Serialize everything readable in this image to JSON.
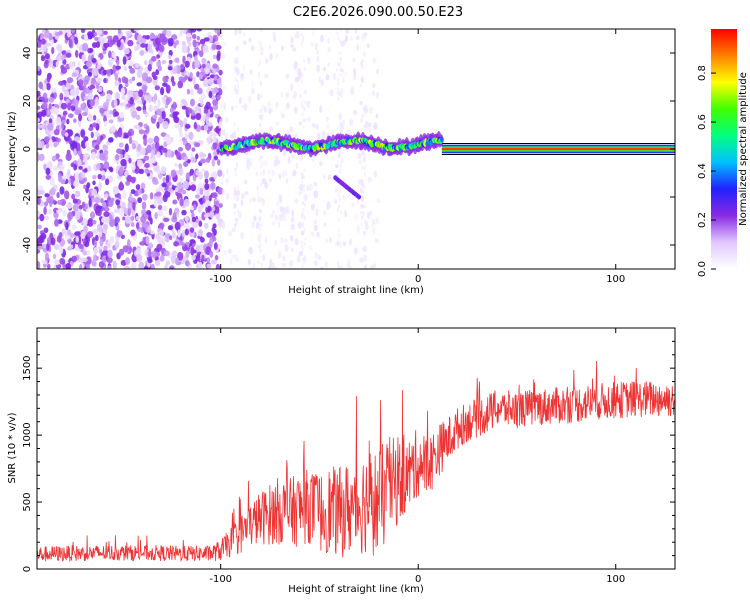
{
  "figure_title": "C2E6.2026.090.00.50.E23",
  "chart_data": [
    {
      "type": "heatmap",
      "title": "C2E6.2026.090.00.50.E23",
      "xlabel": "Height of straight line (km)",
      "ylabel": "Frequency (Hz)",
      "xlim": [
        -193,
        130
      ],
      "ylim": [
        -50,
        50
      ],
      "xticks": [
        -100,
        0,
        100
      ],
      "xtick_labels": [
        "-100",
        "0",
        "100"
      ],
      "yticks": [
        -40,
        -20,
        0,
        20,
        40
      ],
      "ytick_labels": [
        "-40",
        "-20",
        "0",
        "20",
        "40"
      ],
      "colorbar": {
        "label": "Normalized spectral amplitude",
        "range": [
          0,
          0.98
        ],
        "ticks": [
          0,
          0.2,
          0.4,
          0.6,
          0.8
        ],
        "tick_labels": [
          "0.0",
          "0.2",
          "0.4",
          "0.6",
          "0.8"
        ],
        "colormap": [
          "#ffffff",
          "#e0c8ff",
          "#8a2be2",
          "#2020ff",
          "#00c0ff",
          "#00ff80",
          "#40ff00",
          "#ffff00",
          "#ff8000",
          "#ff0000"
        ]
      },
      "features": [
        {
          "name": "noise region",
          "x_range": [
            -193,
            -100
          ],
          "amplitude": [
            0.05,
            0.25
          ]
        },
        {
          "name": "signal band",
          "x_range": [
            -100,
            12
          ],
          "frequency_center": 2,
          "amplitude": [
            0.3,
            0.8
          ]
        },
        {
          "name": "steady signal",
          "x_range": [
            12,
            130
          ],
          "frequency": 0,
          "amplitude": 0.95
        },
        {
          "name": "secondary trace",
          "x_range": [
            -42,
            -30
          ],
          "frequency_range": [
            -12,
            -20
          ]
        }
      ]
    },
    {
      "type": "line",
      "xlabel": "Height of straight line (km)",
      "ylabel": "SNR (10 * v/v)",
      "xlim": [
        -193,
        130
      ],
      "ylim": [
        0,
        1800
      ],
      "xticks": [
        -100,
        0,
        100
      ],
      "xtick_labels": [
        "-100",
        "0",
        "100"
      ],
      "yticks": [
        0,
        500,
        1000,
        1500
      ],
      "ytick_labels": [
        "0",
        "500",
        "1000",
        "1500"
      ],
      "series": [
        {
          "name": "SNR",
          "color": "#ee3333",
          "x": [
            -193,
            -180,
            -160,
            -140,
            -120,
            -105,
            -100,
            -95,
            -90,
            -85,
            -80,
            -75,
            -70,
            -65,
            -60,
            -55,
            -50,
            -45,
            -40,
            -35,
            -30,
            -25,
            -20,
            -15,
            -10,
            -5,
            0,
            5,
            10,
            15,
            20,
            25,
            30,
            35,
            40,
            50,
            60,
            70,
            80,
            90,
            100,
            110,
            120,
            130
          ],
          "y": [
            110,
            115,
            120,
            120,
            115,
            115,
            140,
            200,
            260,
            330,
            380,
            410,
            440,
            420,
            450,
            470,
            420,
            440,
            420,
            450,
            480,
            520,
            480,
            620,
            650,
            700,
            800,
            760,
            880,
            960,
            1050,
            1100,
            1130,
            1160,
            1200,
            1190,
            1210,
            1220,
            1230,
            1250,
            1260,
            1270,
            1270,
            1270
          ],
          "noise": [
            60,
            60,
            60,
            60,
            60,
            60,
            80,
            110,
            150,
            170,
            200,
            230,
            260,
            260,
            280,
            280,
            300,
            330,
            340,
            360,
            380,
            400,
            420,
            380,
            320,
            280,
            260,
            240,
            200,
            180,
            160,
            150,
            150,
            150,
            140,
            140,
            140,
            140,
            140,
            140,
            140,
            140,
            140,
            140
          ]
        }
      ]
    }
  ]
}
